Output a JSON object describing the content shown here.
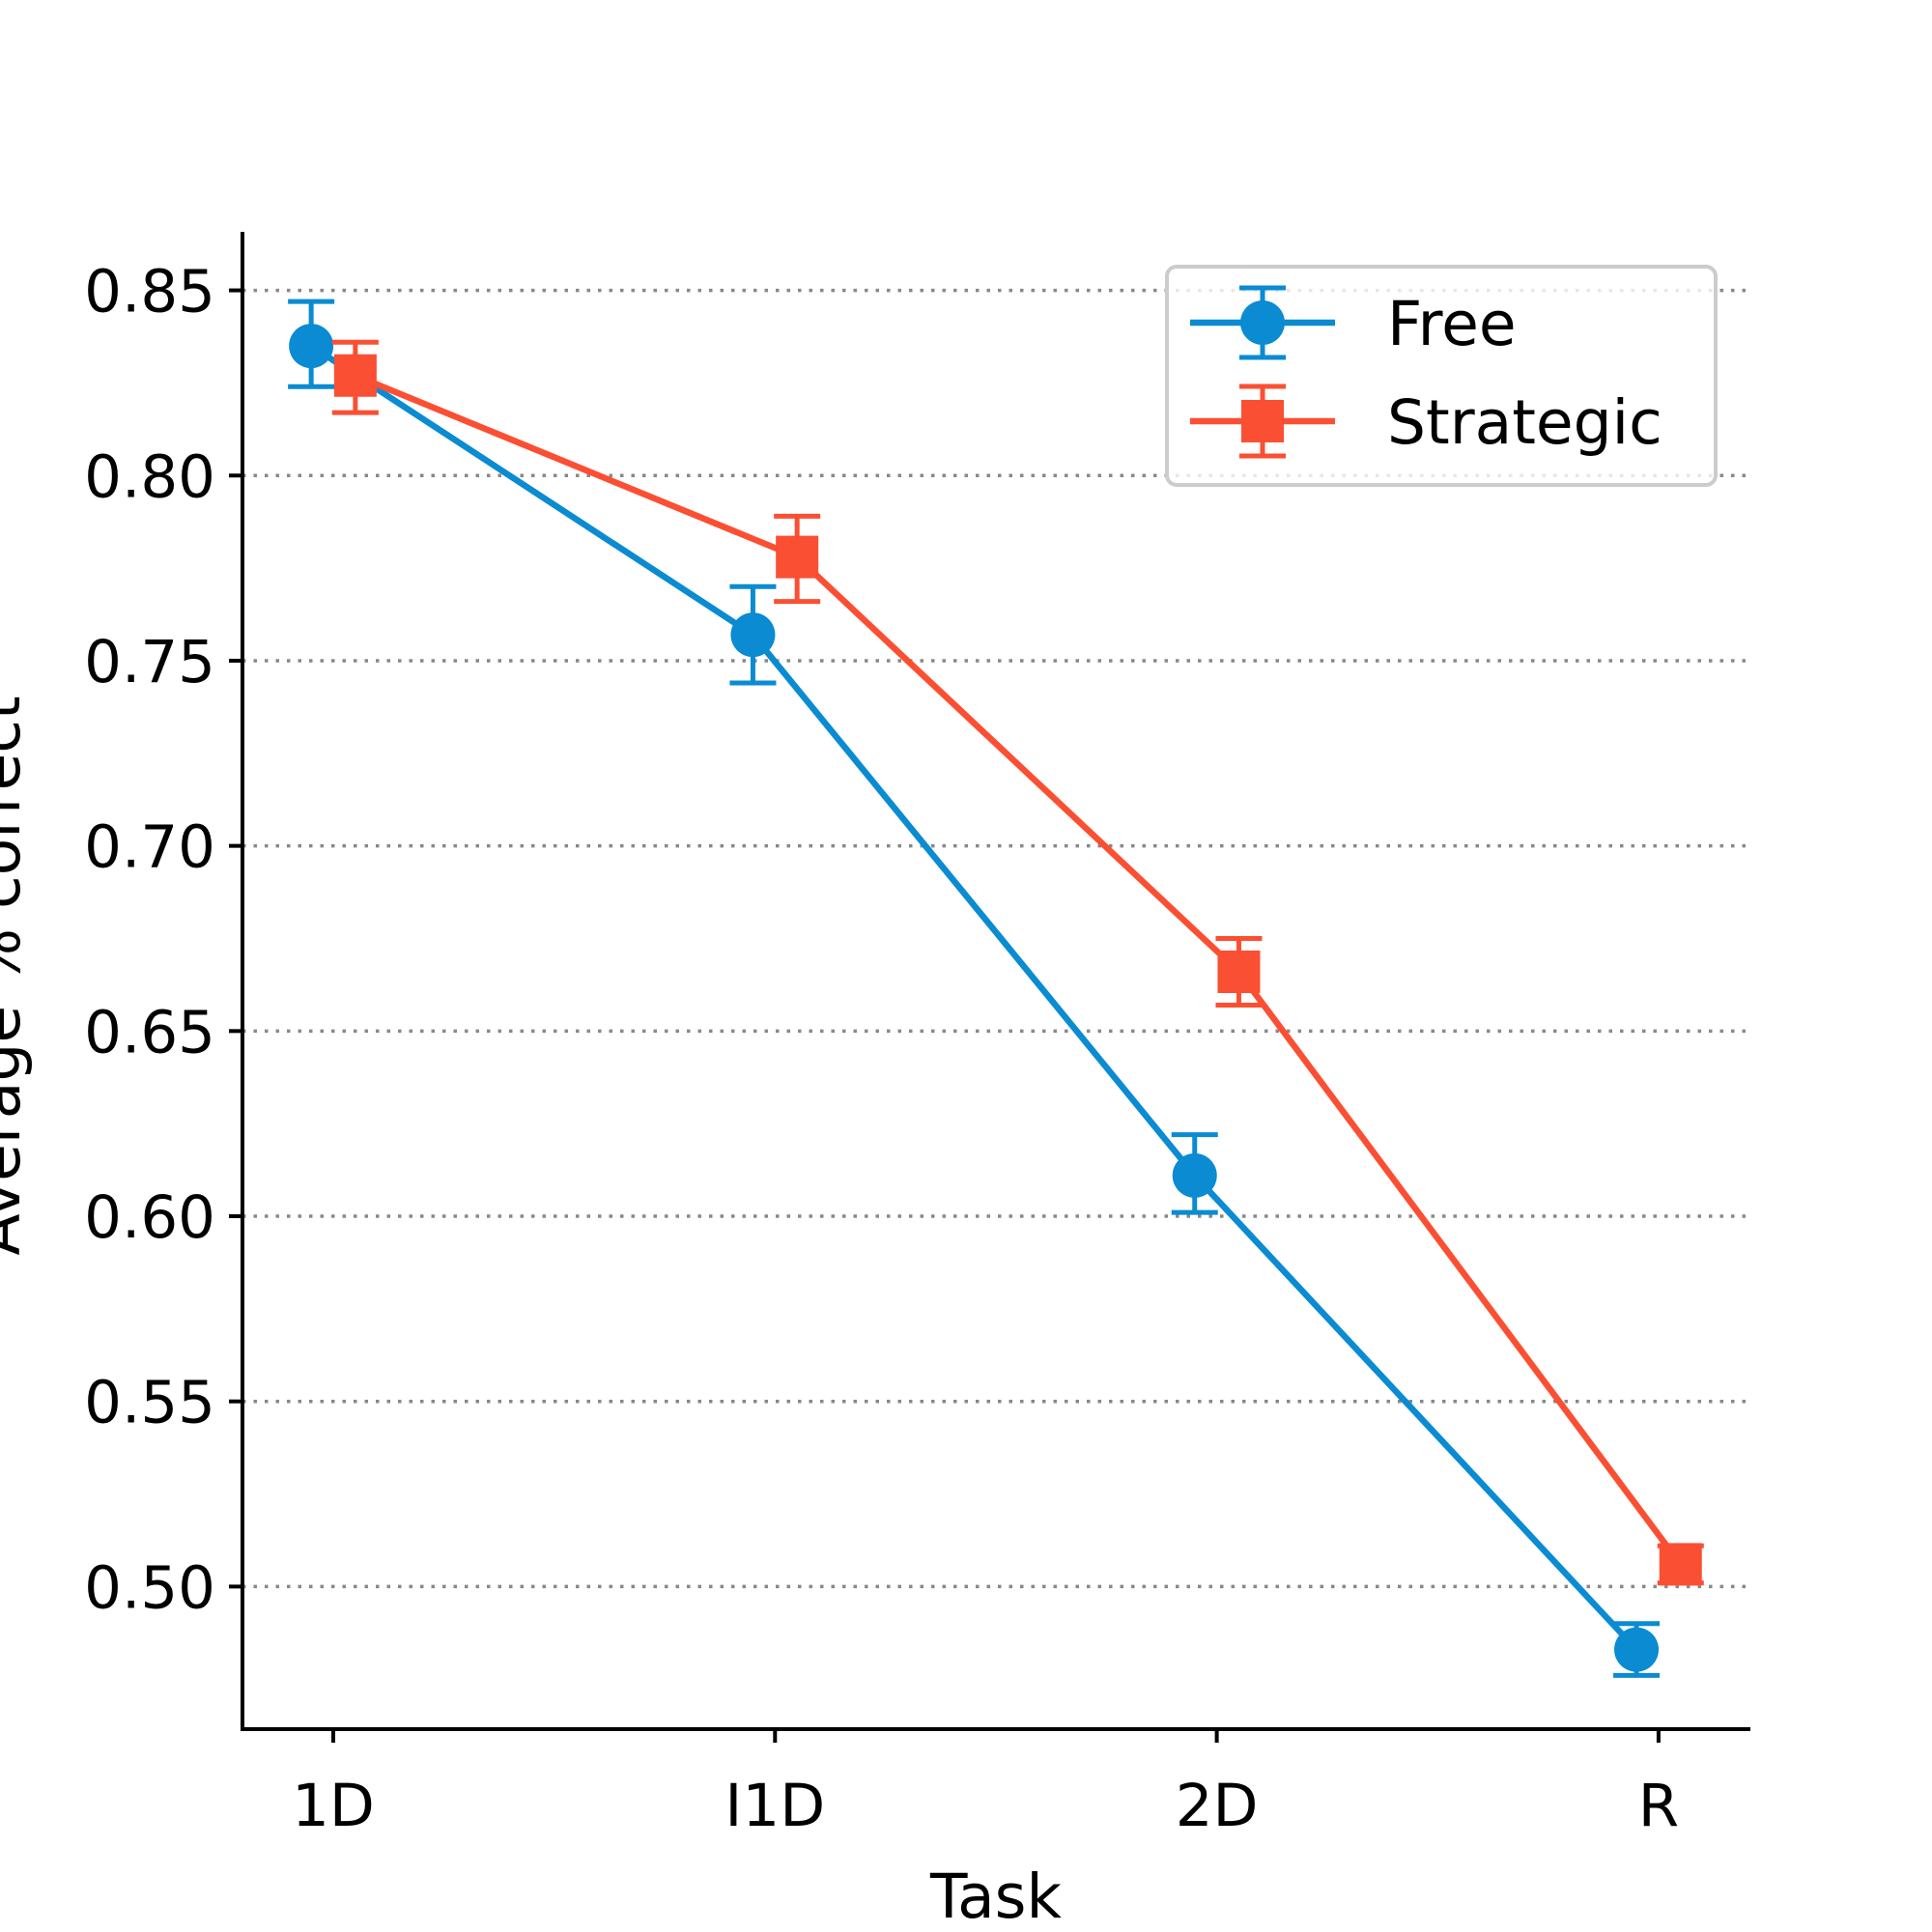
{
  "chart_data": {
    "type": "line",
    "title": "",
    "xlabel": "Task",
    "ylabel": "Average % correct",
    "categories": [
      "1D",
      "I1D",
      "2D",
      "R"
    ],
    "ylim": [
      0.4615,
      0.8658
    ],
    "yticks": [
      0.5,
      0.55,
      0.6,
      0.65,
      0.7,
      0.75,
      0.8,
      0.85
    ],
    "ytick_labels": [
      "0.50",
      "0.55",
      "0.60",
      "0.65",
      "0.70",
      "0.75",
      "0.80",
      "0.85"
    ],
    "grid": "horizontal-dotted",
    "legend_position": "top-right",
    "series": [
      {
        "name": "Free",
        "marker": "circle",
        "color": "#0a8bd2",
        "offset": -0.05,
        "values": [
          0.835,
          0.757,
          0.611,
          0.483
        ],
        "err_low": [
          0.824,
          0.744,
          0.601,
          0.476
        ],
        "err_high": [
          0.847,
          0.77,
          0.622,
          0.49
        ]
      },
      {
        "name": "Strategic",
        "marker": "square",
        "color": "#fb4f33",
        "offset": 0.05,
        "values": [
          0.827,
          0.778,
          0.666,
          0.506
        ],
        "err_low": [
          0.817,
          0.766,
          0.657,
          0.501
        ],
        "err_high": [
          0.836,
          0.789,
          0.675,
          0.511
        ]
      }
    ]
  }
}
